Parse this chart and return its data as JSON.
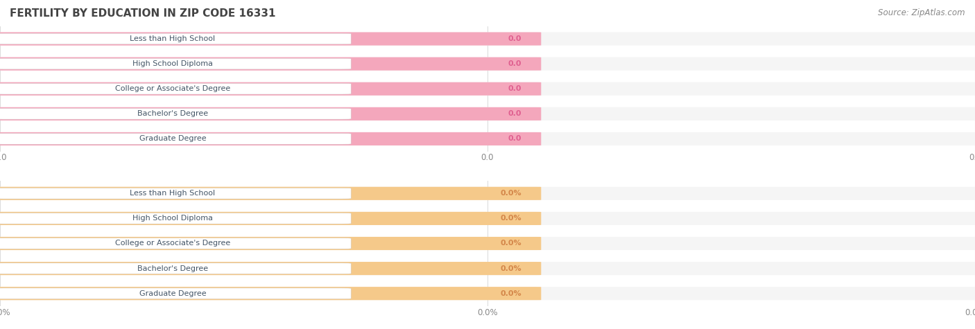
{
  "title": "FERTILITY BY EDUCATION IN ZIP CODE 16331",
  "source": "Source: ZipAtlas.com",
  "categories": [
    "Less than High School",
    "High School Diploma",
    "College or Associate's Degree",
    "Bachelor's Degree",
    "Graduate Degree"
  ],
  "top_values": [
    0.0,
    0.0,
    0.0,
    0.0,
    0.0
  ],
  "bottom_values": [
    0.0,
    0.0,
    0.0,
    0.0,
    0.0
  ],
  "top_bar_color": "#f4a7bc",
  "top_bg_color": "#f9d0dc",
  "bottom_bar_color": "#f5c98a",
  "bottom_bg_color": "#fde8c8",
  "row_bg_color": "#f5f5f5",
  "label_bg_color": "#ffffff",
  "top_value_color": "#e06090",
  "bottom_value_color": "#d4874a",
  "top_tick_label": "0.0",
  "bottom_tick_label": "0.0%",
  "figsize": [
    14.06,
    4.75
  ],
  "dpi": 100,
  "title_fontsize": 11,
  "label_fontsize": 8,
  "value_fontsize": 8,
  "tick_fontsize": 8.5,
  "source_fontsize": 8.5,
  "title_color": "#444444",
  "label_text_color": "#445566",
  "tick_color": "#888888",
  "grid_color": "#dddddd"
}
